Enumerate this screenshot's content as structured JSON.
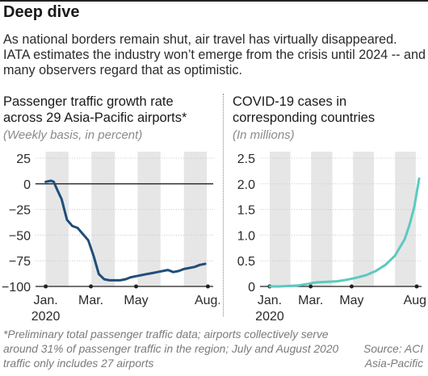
{
  "header": {
    "title": "Deep dive",
    "deck": "As national borders remain shut, air travel has virtually disappeared. IATA estimates the industry won’t emerge from the crisis until 2024 -- and many observers regard that as optimistic."
  },
  "footer": {
    "footnote": "*Preliminary total passenger traffic data; airports collectively serve around 31% of passenger traffic in the region; July and August 2020 traffic only includes 27 airports",
    "source_line1": "Source: ACI",
    "source_line2": "Asia-Pacific"
  },
  "colors": {
    "left_line": "#1f4e79",
    "right_line": "#5cc9c0",
    "band": "#e6e6e6",
    "axis": "#222222"
  },
  "chart_data": [
    {
      "type": "line",
      "title_line1": "Passenger traffic growth rate",
      "title_line2": "across 29 Asia-Pacific airports*",
      "subtitle": "(Weekly basis, in percent)",
      "x_tick_labels": [
        "Jan.",
        "Mar.",
        "May",
        "Aug."
      ],
      "x_year_label": "2020",
      "x_tick_weeks": [
        0,
        8.5,
        17,
        30.5
      ],
      "xlim": [
        -1,
        31.5
      ],
      "ylim": [
        -100,
        25
      ],
      "y_ticks": [
        25,
        0,
        -25,
        -50,
        -75,
        -100
      ],
      "y_tick_labels": [
        "25",
        "0",
        "−25",
        "−50",
        "−75",
        "−100"
      ],
      "grid": true,
      "x_week": [
        0,
        1,
        1.5,
        2,
        3,
        4,
        5,
        6,
        7,
        8,
        9,
        10,
        11,
        12,
        13,
        14,
        15,
        16,
        17,
        18,
        19,
        20,
        21,
        22,
        23,
        24,
        25,
        26,
        27,
        28,
        29,
        30
      ],
      "values": [
        2,
        3,
        2,
        -4,
        -15,
        -35,
        -41,
        -43,
        -49,
        -55,
        -70,
        -88,
        -93,
        -94,
        -94,
        -94,
        -93,
        -91,
        -90,
        -89,
        -88,
        -87,
        -86,
        -85,
        -84,
        -86,
        -85,
        -83,
        -82,
        -81,
        -79,
        -78
      ]
    },
    {
      "type": "line",
      "title_line1": "COVID-19 cases in",
      "title_line2": "corresponding countries",
      "subtitle": "(In millions)",
      "x_tick_labels": [
        "Jan.",
        "Mar.",
        "May",
        "Aug."
      ],
      "x_year_label": "2020",
      "x_tick_weeks": [
        0,
        8.5,
        17,
        30.5
      ],
      "xlim": [
        -1,
        31.5
      ],
      "ylim": [
        0,
        2.5
      ],
      "y_ticks": [
        0,
        0.5,
        1.0,
        1.5,
        2.0,
        2.5
      ],
      "y_tick_labels": [
        "0",
        "0.5",
        "1.0",
        "1.5",
        "2.0",
        "2.5"
      ],
      "grid": true,
      "x_week": [
        0,
        2,
        4,
        6,
        8,
        9,
        10,
        12,
        14,
        16,
        18,
        20,
        22,
        24,
        26,
        28,
        29,
        30,
        31
      ],
      "values": [
        0,
        0,
        0.01,
        0.02,
        0.05,
        0.07,
        0.08,
        0.09,
        0.1,
        0.13,
        0.17,
        0.22,
        0.3,
        0.42,
        0.6,
        0.92,
        1.2,
        1.55,
        2.1
      ]
    }
  ]
}
